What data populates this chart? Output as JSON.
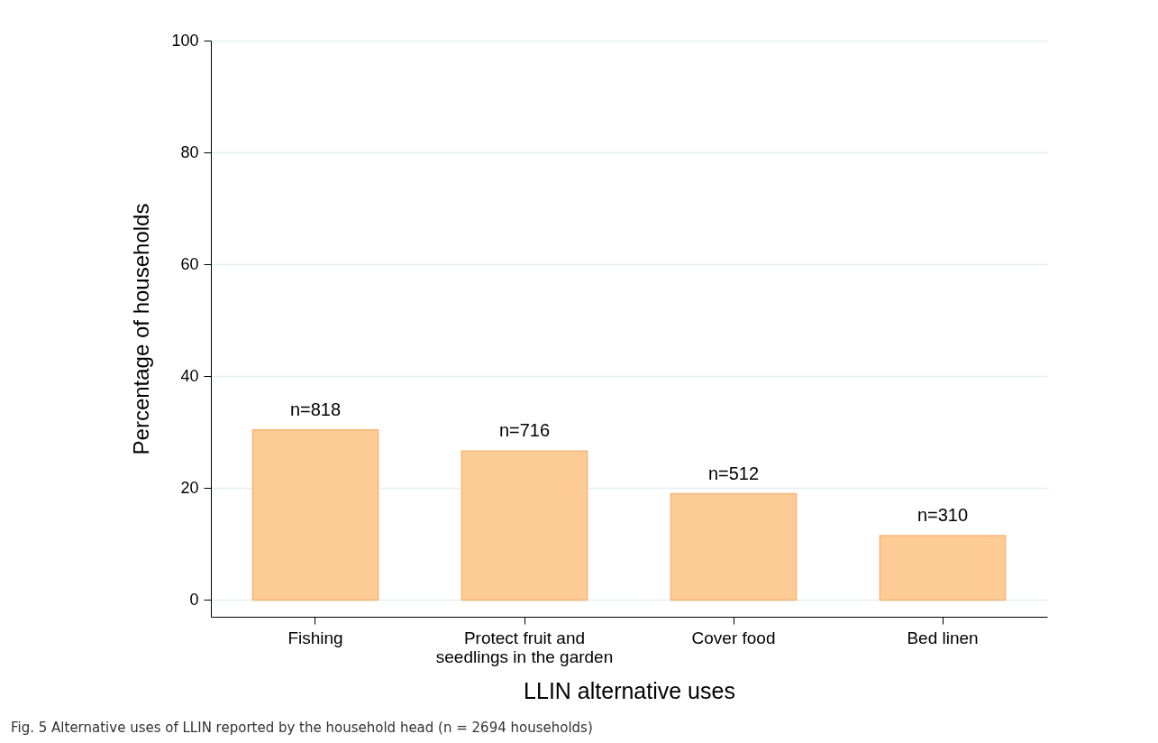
{
  "chart_data": {
    "type": "bar",
    "xlabel": "LLIN alternative uses",
    "ylabel": "Percentage of households",
    "categories": [
      "Fishing",
      "Protect fruit and seedlings in the garden",
      "Cover food",
      "Bed linen"
    ],
    "values": [
      30.4,
      26.6,
      19.0,
      11.5
    ],
    "color": "#fdcb96",
    "ylim": [
      -3,
      100
    ],
    "yticks": [
      0,
      20,
      40,
      60,
      80,
      100
    ],
    "grid": "y",
    "annotations": [
      {
        "text": "n=818",
        "x": "Fishing",
        "y": 30.4
      },
      {
        "text": "n=716",
        "x": "Protect fruit and seedlings in the garden",
        "y": 26.6
      },
      {
        "text": "n=512",
        "x": "Cover food",
        "y": 19.0
      },
      {
        "text": "n=310",
        "x": "Bed linen",
        "y": 11.5
      },
      "Fig. 5 Alternative uses of LLIN reported by the household head (n = 2694 households)"
    ]
  }
}
